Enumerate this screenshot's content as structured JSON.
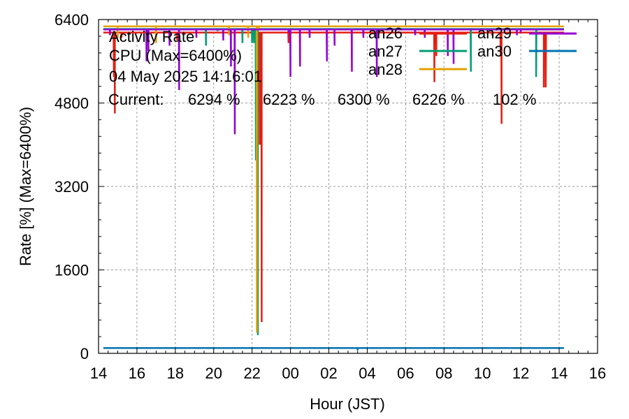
{
  "chart_data": {
    "type": "line",
    "info": {
      "line1": "Activity Rate",
      "line2": "CPU (Max=6400%)",
      "line3": "04 May 2025 14:16:01"
    },
    "current": {
      "label": "Current:",
      "values": [
        "6294 %",
        "6223 %",
        "6300 %",
        "6226 %",
        "102 %"
      ]
    },
    "xlabel": "Hour (JST)",
    "ylabel": "Rate [%]  (Max=6400%)",
    "xlim": [
      14,
      40
    ],
    "ylim": [
      0,
      6400
    ],
    "xticks": [
      14,
      16,
      18,
      20,
      22,
      24,
      26,
      28,
      30,
      32,
      34,
      36,
      38,
      40
    ],
    "xtick_labels": [
      "14",
      "16",
      "18",
      "20",
      "22",
      "00",
      "02",
      "04",
      "06",
      "08",
      "10",
      "12",
      "14",
      "16"
    ],
    "yticks": [
      0,
      1600,
      3200,
      4800,
      6400
    ],
    "ytick_labels": [
      "0",
      "1600",
      "3200",
      "4800",
      "6400"
    ],
    "grid": true,
    "series": [
      {
        "name": "an26",
        "color": "#e51e10",
        "base": 6150,
        "dips": [
          [
            14.8,
            5300
          ],
          [
            14.85,
            4600
          ],
          [
            15.2,
            6050
          ],
          [
            18.1,
            6000
          ],
          [
            22.4,
            4000
          ],
          [
            22.5,
            600
          ],
          [
            23.9,
            5950
          ],
          [
            26.5,
            6150
          ],
          [
            31.5,
            5200
          ],
          [
            31.6,
            5700
          ],
          [
            34.95,
            5700
          ],
          [
            35.0,
            4400
          ],
          [
            37.2,
            5100
          ],
          [
            37.3,
            5100
          ],
          [
            34.5,
            6100
          ]
        ]
      },
      {
        "name": "an27",
        "color": "#009e73",
        "base": 6220,
        "dips": [
          [
            19.6,
            5900
          ],
          [
            20.2,
            6180
          ],
          [
            21.5,
            5950
          ],
          [
            22.0,
            5950
          ],
          [
            22.1,
            5950
          ],
          [
            22.2,
            3700
          ],
          [
            22.3,
            350
          ],
          [
            33.4,
            5400
          ],
          [
            36.8,
            5300
          ],
          [
            29.1,
            6200
          ]
        ]
      },
      {
        "name": "an28",
        "color": "#e69f00",
        "base": 6270,
        "dips": [
          [
            15.0,
            6050
          ],
          [
            17.0,
            5950
          ],
          [
            20.8,
            6100
          ],
          [
            21.8,
            6050
          ],
          [
            22.25,
            400
          ],
          [
            22.35,
            6200
          ]
        ]
      },
      {
        "name": "an29",
        "color": "#9400d3",
        "base": 6210,
        "dips": [
          [
            14.6,
            6100
          ],
          [
            16.5,
            5600
          ],
          [
            16.6,
            5800
          ],
          [
            17.7,
            5900
          ],
          [
            18.2,
            5050
          ],
          [
            19.1,
            6050
          ],
          [
            20.5,
            6000
          ],
          [
            20.9,
            5500
          ],
          [
            21.1,
            4200
          ],
          [
            22.6,
            6200
          ],
          [
            23.9,
            6150
          ],
          [
            24.0,
            5300
          ],
          [
            24.5,
            5500
          ],
          [
            25.0,
            6050
          ],
          [
            25.9,
            5600
          ],
          [
            26.3,
            5900
          ],
          [
            27.2,
            5400
          ],
          [
            27.8,
            6050
          ],
          [
            28.5,
            5300
          ],
          [
            28.6,
            6150
          ],
          [
            30.5,
            6100
          ],
          [
            31.0,
            6050
          ],
          [
            32.2,
            5700
          ],
          [
            32.5,
            5550
          ],
          [
            35.8,
            6100
          ],
          [
            36.0,
            6150
          ]
        ]
      },
      {
        "name": "an30",
        "color": "#0072b2",
        "base": 102,
        "dips": [
          [
            27.5,
            60
          ]
        ]
      }
    ]
  }
}
